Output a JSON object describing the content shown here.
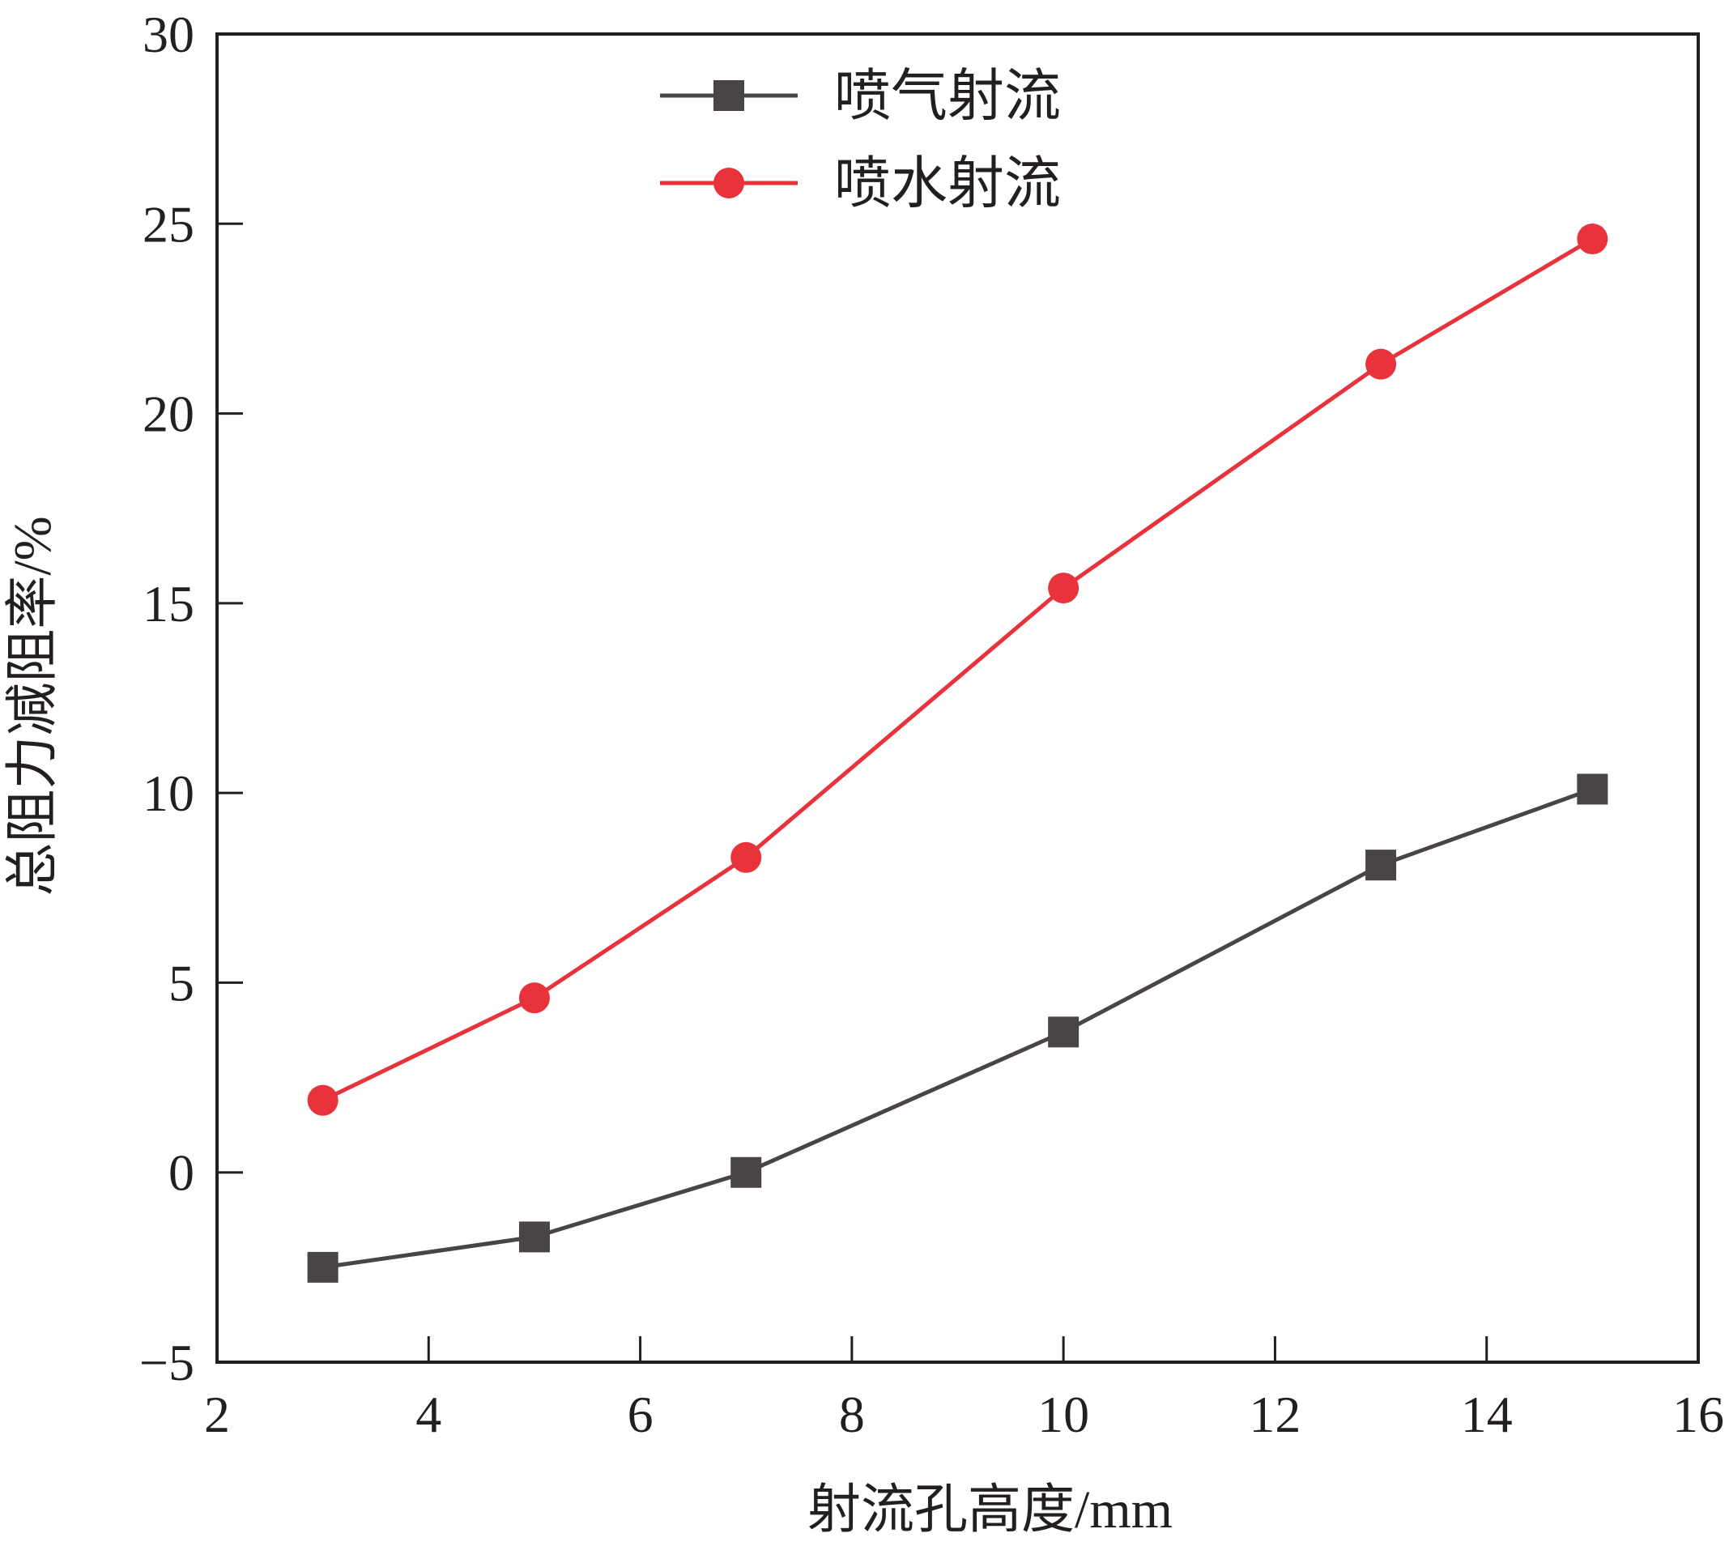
{
  "chart_data": {
    "type": "line",
    "title": "",
    "xlabel": "射流孔高度/mm",
    "ylabel": "总阻力减阻率/%",
    "xlim": [
      2,
      16
    ],
    "ylim": [
      -5,
      30
    ],
    "xticks": [
      2,
      4,
      6,
      8,
      10,
      12,
      14,
      16
    ],
    "yticks": [
      -5,
      0,
      5,
      10,
      15,
      20,
      25,
      30
    ],
    "xtick_labels": [
      "2",
      "4",
      "6",
      "8",
      "10",
      "12",
      "14",
      "16"
    ],
    "ytick_labels": [
      "−5",
      "0",
      "5",
      "10",
      "15",
      "20",
      "25",
      "30"
    ],
    "grid": false,
    "legend_position": "top-center",
    "series": [
      {
        "name": "喷气射流",
        "marker": "square",
        "color": "#4a4545",
        "x": [
          3,
          5,
          7,
          10,
          13,
          15
        ],
        "y": [
          -2.5,
          -1.7,
          0.0,
          3.7,
          8.1,
          10.1
        ]
      },
      {
        "name": "喷水射流",
        "marker": "circle",
        "color": "#e8323c",
        "x": [
          3,
          5,
          7,
          10,
          13,
          15
        ],
        "y": [
          1.9,
          4.6,
          8.3,
          15.4,
          21.3,
          24.6
        ]
      }
    ]
  }
}
